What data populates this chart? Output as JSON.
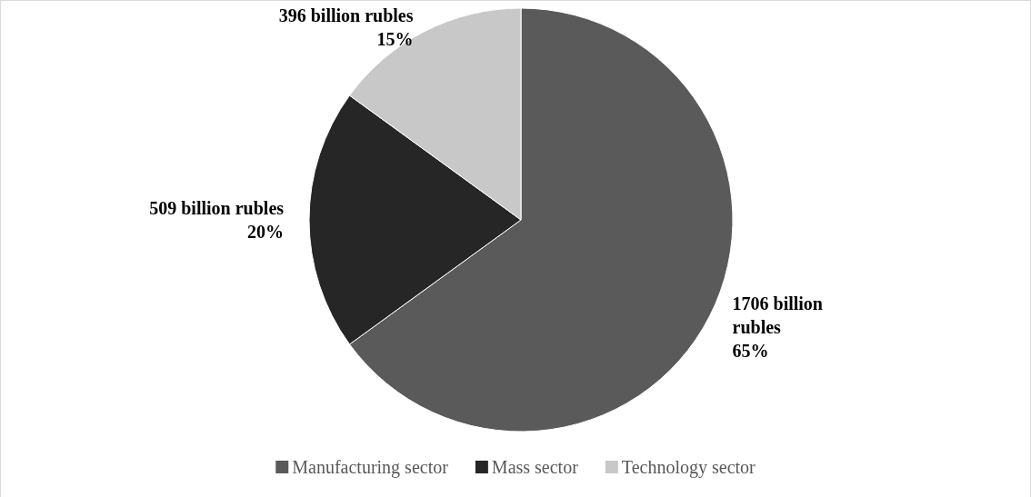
{
  "chart_data": {
    "type": "pie",
    "categories": [
      "Manufacturing sector",
      "Mass sector",
      "Technology sector"
    ],
    "values": [
      65,
      20,
      15
    ],
    "colors": [
      "#5a5a5a",
      "#262626",
      "#c8c8c8"
    ],
    "value_labels": [
      "1706 billion\nrubles\n65%",
      "509 billion rubles\n20%",
      "396 billion rubles\n15%"
    ],
    "legend": "bottom"
  }
}
